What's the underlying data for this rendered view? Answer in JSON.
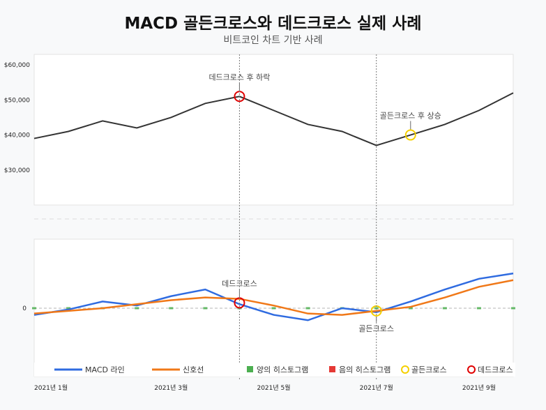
{
  "title": "MACD 골든크로스와 데드크로스 실제 사례",
  "subtitle": "비트코인 차트 기반 사례",
  "chart_data": [
    {
      "type": "line",
      "panel": "price",
      "x": [
        "2021-01-01",
        "2021-01-20",
        "2021-02-08",
        "2021-02-27",
        "2021-03-18",
        "2021-04-06",
        "2021-04-25",
        "2021-05-14",
        "2021-06-02",
        "2021-06-21",
        "2021-07-10",
        "2021-07-29",
        "2021-08-17",
        "2021-09-05",
        "2021-09-24"
      ],
      "series": [
        {
          "values": [
            39000,
            41000,
            44000,
            42000,
            45000,
            49000,
            51000,
            47000,
            43000,
            41000,
            37000,
            40000,
            43000,
            47000,
            52000
          ],
          "color": "#333333"
        }
      ],
      "yticks": [
        30000,
        40000,
        50000,
        60000
      ],
      "ytick_labels": [
        "$30,000",
        "$40,000",
        "$50,000",
        "$60,000"
      ],
      "ylim": [
        20000,
        63000
      ],
      "annotations": [
        {
          "text": "데드크로스 후 하락",
          "x_index": 6,
          "y": 51000,
          "kind": "dead",
          "position": "above"
        },
        {
          "text": "골든크로스 후 상승",
          "x_index": 11,
          "y": 40000,
          "kind": "golden",
          "position": "above"
        }
      ],
      "vlines_x_index": [
        6,
        10
      ]
    },
    {
      "type": "line",
      "panel": "macd",
      "x": [
        "2021-01-01",
        "2021-01-20",
        "2021-02-08",
        "2021-02-27",
        "2021-03-18",
        "2021-04-06",
        "2021-04-25",
        "2021-05-14",
        "2021-06-02",
        "2021-06-21",
        "2021-07-10",
        "2021-07-29",
        "2021-08-17",
        "2021-09-05",
        "2021-09-24"
      ],
      "series": [
        {
          "name": "MACD 라인",
          "values": [
            -0.5,
            -0.1,
            0.5,
            0.2,
            0.9,
            1.4,
            0.3,
            -0.5,
            -0.9,
            0.0,
            -0.3,
            0.5,
            1.4,
            2.2,
            2.6
          ],
          "color": "#2f6be0"
        },
        {
          "name": "신호선",
          "values": [
            -0.4,
            -0.2,
            0.0,
            0.3,
            0.6,
            0.8,
            0.7,
            0.2,
            -0.4,
            -0.5,
            -0.2,
            0.1,
            0.8,
            1.6,
            2.1
          ],
          "color": "#f07818"
        }
      ],
      "histogram": [
        -0.1,
        0.0,
        0.0,
        0.0,
        0.0,
        0.0,
        0.0,
        0.0,
        -0.05,
        0.0,
        0.0,
        0.0,
        0.0,
        0.0,
        0.0
      ],
      "yticks": [
        0
      ],
      "ytick_labels": [
        "0"
      ],
      "ylim": [
        -8,
        8
      ],
      "annotations": [
        {
          "text": "데드크로스",
          "x_index": 6,
          "y": 0.4,
          "kind": "dead",
          "position": "above"
        },
        {
          "text": "골든크로스",
          "x_index": 10,
          "y": -0.2,
          "kind": "golden",
          "position": "below"
        }
      ],
      "xticks_index": [
        0,
        4,
        7,
        10,
        13
      ],
      "xtick_labels": [
        "2021년 1월",
        "2021년 3월",
        "2021년 5월",
        "2021년 7월",
        "2021년 9월"
      ],
      "legend": [
        {
          "label": "MACD 라인",
          "kind": "line",
          "color": "#2f6be0"
        },
        {
          "label": "신호선",
          "kind": "line",
          "color": "#f07818"
        },
        {
          "label": "양의 히스토그램",
          "kind": "square",
          "color": "#4caf50"
        },
        {
          "label": "음의 히스토그램",
          "kind": "square",
          "color": "#e53935"
        },
        {
          "label": "골든크로스",
          "kind": "circle",
          "color": "#f5d000"
        },
        {
          "label": "데드크로스",
          "kind": "circle",
          "color": "#e00000"
        }
      ],
      "legend_position": "bottom"
    }
  ]
}
